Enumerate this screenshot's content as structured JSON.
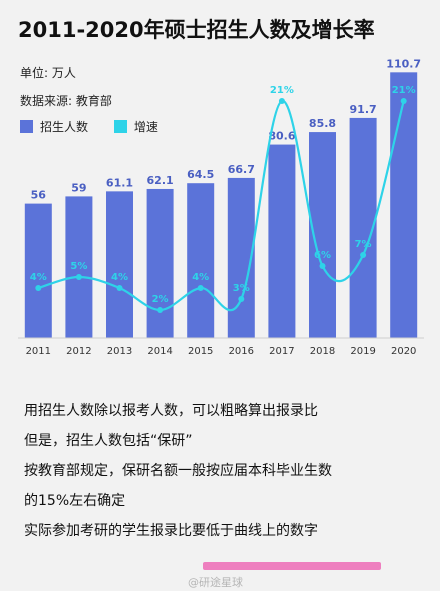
{
  "title": "2011-2020年硕士招生人数及增长率",
  "unit_label": "单位: 万人",
  "source_label": "数据来源: 教育部",
  "legend": [
    {
      "label": "招生人数",
      "color": "#5b73d9"
    },
    {
      "label": "增速",
      "color": "#2ed3e8"
    }
  ],
  "chart_data": {
    "type": "bar",
    "categories": [
      "2011",
      "2012",
      "2013",
      "2014",
      "2015",
      "2016",
      "2017",
      "2018",
      "2019",
      "2020"
    ],
    "series": [
      {
        "name": "招生人数",
        "type": "bar",
        "values": [
          56,
          59,
          61.1,
          62.1,
          64.5,
          66.7,
          80.6,
          85.8,
          91.7,
          110.7
        ],
        "labels": [
          "56",
          "59",
          "61.1",
          "62.1",
          "64.5",
          "66.7",
          "80.6",
          "85.8",
          "91.7",
          "110.7"
        ],
        "color": "#5b73d9"
      },
      {
        "name": "增速",
        "type": "line",
        "values": [
          4,
          5,
          4,
          2,
          4,
          3,
          21,
          6,
          7,
          21
        ],
        "labels": [
          "4%",
          "5%",
          "4%",
          "2%",
          "4%",
          "3%",
          "21%",
          "6%",
          "7%",
          "21%"
        ],
        "color": "#2ed3e8"
      }
    ],
    "ylim": [
      0,
      115
    ],
    "y2lim": [
      0,
      25
    ],
    "grid": false
  },
  "notes": [
    "用招生人数除以报考人数，可以粗略算出报录比",
    "但是，招生人数包括“保研”",
    "按教育部规定，保研名额一般按应届本科毕业生数",
    "的15%左右确定",
    "实际参加考研的学生报录比要低于曲线上的数字"
  ],
  "watermark": "@研途星球"
}
